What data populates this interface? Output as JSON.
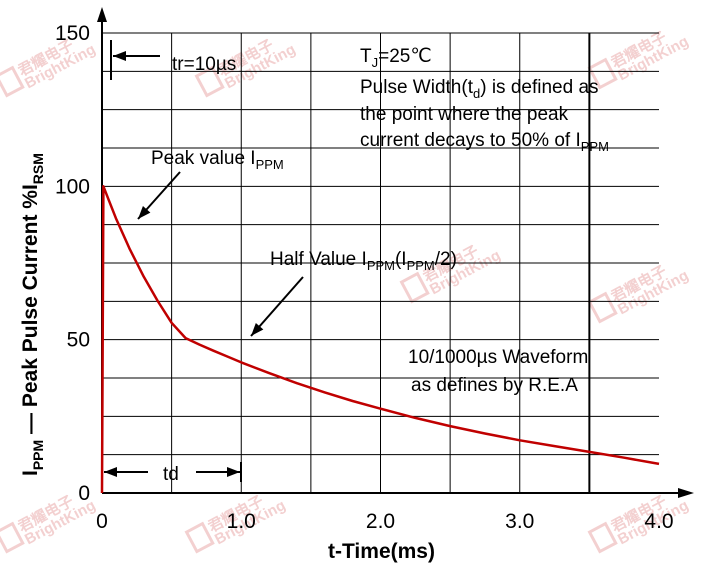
{
  "chart_data": {
    "type": "line",
    "title": "",
    "xlabel": "t-Time(ms)",
    "ylabel": {
      "main": "I",
      "main_sub": "PPM",
      "middle": " — Peak Pulse Current  %I",
      "end_sub": "RSM"
    },
    "xlim": [
      0,
      4.0
    ],
    "ylim": [
      0,
      150
    ],
    "x_ticks": [
      {
        "value": 0,
        "label": "0"
      },
      {
        "value": 1.0,
        "label": "1.0"
      },
      {
        "value": 2.0,
        "label": "2.0"
      },
      {
        "value": 3.0,
        "label": "3.0"
      },
      {
        "value": 4.0,
        "label": "4.0"
      }
    ],
    "y_ticks": [
      {
        "value": 0,
        "label": "0"
      },
      {
        "value": 50,
        "label": "50"
      },
      {
        "value": 100,
        "label": "100"
      },
      {
        "value": 150,
        "label": "150"
      }
    ],
    "grid": true,
    "grid_x_step": 0.5,
    "grid_y_step": 12.5,
    "series": [
      {
        "name": "10/1000µs Waveform",
        "color": "#c00000",
        "x": [
          0,
          0.01,
          0.05,
          0.1,
          0.2,
          0.3,
          0.4,
          0.5,
          0.6,
          0.7,
          0.8,
          0.9,
          1.0,
          1.2,
          1.4,
          1.6,
          1.8,
          2.0,
          2.25,
          2.5,
          2.75,
          3.0,
          3.25,
          3.5,
          3.75,
          4.0
        ],
        "y": [
          0,
          100,
          95.3,
          89.6,
          79.5,
          70.5,
          62.6,
          55.5,
          50.5,
          48.4,
          46.4,
          44.5,
          42.6,
          39.1,
          35.8,
          32.8,
          30.0,
          27.5,
          24.5,
          21.8,
          19.4,
          17.2,
          15.3,
          13.4,
          11.5,
          9.5
        ]
      }
    ],
    "annotations": [
      {
        "id": "tr",
        "text": "tr=10µs"
      },
      {
        "id": "peak",
        "text": "Peak value I",
        "sub": "PPM"
      },
      {
        "id": "half",
        "text": "Half Value I",
        "sub": "PPM",
        "text2": "(I",
        "sub2": "PPM",
        "text3": "/2)"
      },
      {
        "id": "td",
        "text": "td"
      },
      {
        "id": "tj",
        "text": "T",
        "sub": "J",
        "text2": "=25℃"
      },
      {
        "id": "pw1",
        "text": "Pulse Width(t",
        "sub": "d",
        "text2": ") is defined as"
      },
      {
        "id": "pw2",
        "text": "the point where the peak"
      },
      {
        "id": "pw3",
        "text": "current decays to 50% of I",
        "sub": "PPM"
      },
      {
        "id": "wf1",
        "text": "10/1000µs Waveform"
      },
      {
        "id": "wf2",
        "text": "as defines by R.E.A"
      }
    ]
  },
  "watermark": {
    "brand": "BrightKing",
    "cn": "君耀电子",
    "color": "#f2cccc"
  }
}
